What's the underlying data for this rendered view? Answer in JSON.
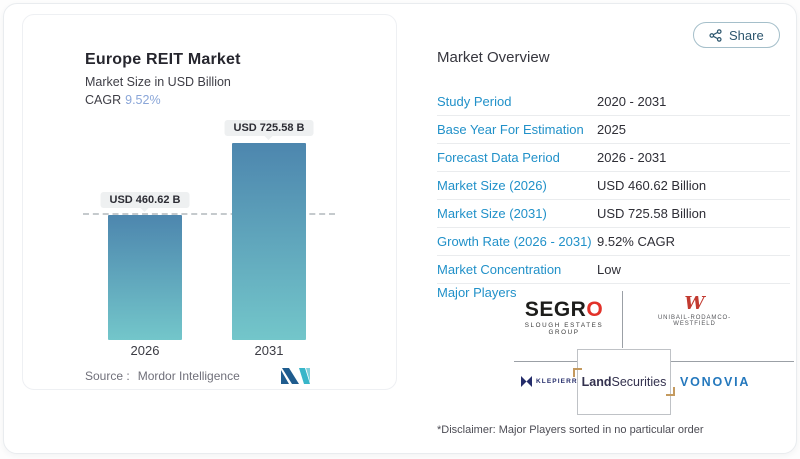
{
  "share": {
    "label": "Share"
  },
  "chart": {
    "title": "Europe REIT Market",
    "subtitle": "Market Size in USD Billion",
    "cagr_label": "CAGR",
    "cagr_value": "9.52%",
    "source_label": "Source :",
    "source_name": "Mordor Intelligence",
    "bar_color_top": "#4d86ae",
    "bar_color_bottom": "#73c6ca",
    "value_label_bg": "#eef0f1",
    "cagr_accent_color": "#8aa6d8"
  },
  "chart_data": {
    "type": "bar",
    "title": "Europe REIT Market",
    "ylabel": "Market Size in USD Billion",
    "categories": [
      "2026",
      "2031"
    ],
    "values": [
      460.62,
      725.58
    ],
    "bar_labels": [
      "USD 460.62 B",
      "USD 725.58 B"
    ],
    "annotations": [
      "CAGR 9.52%"
    ],
    "reference_line": 460.62,
    "ylim": [
      0,
      725.58
    ],
    "grid": false,
    "legend": false
  },
  "overview": {
    "title": "Market Overview",
    "rows": [
      {
        "label": "Study Period",
        "value": "2020 - 2031"
      },
      {
        "label": "Base Year For Estimation",
        "value": "2025"
      },
      {
        "label": "Forecast Data Period",
        "value": "2026 - 2031"
      },
      {
        "label": "Market Size (2026)",
        "value": "USD 460.62 Billion"
      },
      {
        "label": "Market Size (2031)",
        "value": "USD 725.58 Billion"
      },
      {
        "label": "Growth Rate (2026 - 2031)",
        "value": "9.52% CAGR"
      },
      {
        "label": "Market Concentration",
        "value": "Low"
      }
    ],
    "major_players_label": "Major Players",
    "players": {
      "segro": {
        "text": "SEGR",
        "accent": "O",
        "sub": "SLOUGH ESTATES GROUP",
        "accent_color": "#e2322a"
      },
      "unibail": {
        "monogram": "W",
        "name": "UNIBAIL-RODAMCO-WESTFIELD",
        "monogram_color": "#c23a30"
      },
      "klepierre": {
        "name": "KLEPIERRE",
        "brand_color": "#252d6b"
      },
      "landsecurities": {
        "bold": "Land",
        "rest": "Securities",
        "gold_color": "#c49a5f"
      },
      "vonovia": {
        "name": "VONOVIA",
        "brand_color": "#2478bd"
      }
    },
    "disclaimer": "*Disclaimer: Major Players sorted in no particular order",
    "label_color": "#2191c9"
  }
}
